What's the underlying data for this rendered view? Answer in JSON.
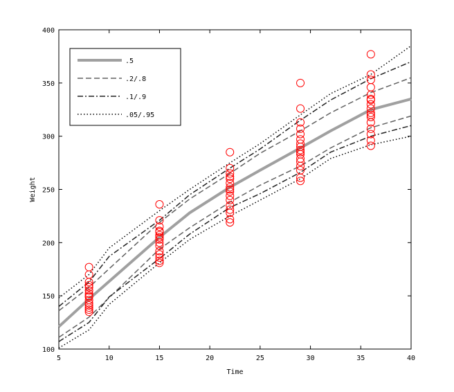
{
  "chart_data": {
    "type": "line",
    "title": "",
    "xlabel": "Time",
    "ylabel": "Weight",
    "xlim": [
      5,
      40
    ],
    "ylim": [
      100,
      400
    ],
    "xticks": [
      5,
      10,
      15,
      20,
      25,
      30,
      35,
      40
    ],
    "yticks": [
      100,
      150,
      200,
      250,
      300,
      350,
      400
    ],
    "grid": false,
    "legend_position": "top-left",
    "marker_color": "#ff0000",
    "series": [
      {
        "name": ".5",
        "style": "solid-thick-gray",
        "color": "#a0a0a0",
        "x": [
          5,
          8,
          15,
          18,
          22,
          25,
          29,
          32,
          36,
          40
        ],
        "y": [
          121,
          147,
          205,
          228,
          252,
          268,
          289,
          305,
          325,
          335
        ]
      },
      {
        "name": ".2/.8",
        "style": "dashed",
        "color": "#606060",
        "upper": {
          "x": [
            5,
            8,
            15,
            18,
            22,
            25,
            29,
            32,
            36,
            40
          ],
          "y": [
            136,
            158,
            219,
            241,
            265,
            284,
            305,
            322,
            341,
            355
          ]
        },
        "lower": {
          "x": [
            5,
            8,
            15,
            18,
            22,
            25,
            29,
            32,
            36,
            40
          ],
          "y": [
            111,
            130,
            194,
            214,
            238,
            254,
            272,
            289,
            308,
            319
          ]
        }
      },
      {
        "name": ".1/.9",
        "style": "dashdot",
        "color": "#202020",
        "upper": {
          "x": [
            5,
            8,
            10,
            15,
            18,
            22,
            25,
            29,
            32,
            36,
            40
          ],
          "y": [
            140,
            163,
            187,
            221,
            245,
            270,
            288,
            315,
            334,
            354,
            370
          ]
        },
        "lower": {
          "x": [
            5,
            8,
            10,
            15,
            18,
            22,
            25,
            29,
            32,
            36,
            40
          ],
          "y": [
            107,
            125,
            149,
            185,
            208,
            233,
            246,
            266,
            285,
            300,
            310
          ]
        }
      },
      {
        "name": ".05/.95",
        "style": "dotted",
        "color": "#000000",
        "upper": {
          "x": [
            5,
            8,
            10,
            15,
            18,
            22,
            25,
            29,
            32,
            36,
            40
          ],
          "y": [
            148,
            170,
            195,
            230,
            250,
            275,
            293,
            320,
            340,
            358,
            385
          ]
        },
        "lower": {
          "x": [
            5,
            8,
            10,
            15,
            18,
            22,
            25,
            29,
            32,
            36,
            40
          ],
          "y": [
            101,
            118,
            142,
            181,
            203,
            225,
            240,
            260,
            279,
            292,
            300
          ]
        }
      }
    ],
    "scatter": {
      "x": [
        8,
        8,
        8,
        8,
        8,
        8,
        8,
        8,
        8,
        8,
        8,
        8,
        8,
        8,
        8,
        15,
        15,
        15,
        15,
        15,
        15,
        15,
        15,
        15,
        15,
        15,
        15,
        15,
        15,
        15,
        22,
        22,
        22,
        22,
        22,
        22,
        22,
        22,
        22,
        22,
        22,
        22,
        22,
        22,
        22,
        22,
        29,
        29,
        29,
        29,
        29,
        29,
        29,
        29,
        29,
        29,
        29,
        29,
        29,
        29,
        29,
        29,
        29,
        36,
        36,
        36,
        36,
        36,
        36,
        36,
        36,
        36,
        36,
        36,
        36,
        36,
        36,
        36,
        36,
        36
      ],
      "y": [
        177,
        170,
        163,
        158,
        155,
        152,
        149,
        146,
        143,
        141,
        139,
        137,
        135,
        150,
        160,
        236,
        221,
        215,
        211,
        207,
        203,
        200,
        197,
        192,
        189,
        186,
        183,
        181,
        210,
        205,
        285,
        270,
        265,
        260,
        256,
        252,
        248,
        244,
        240,
        235,
        231,
        228,
        222,
        219,
        250,
        262,
        350,
        326,
        313,
        307,
        302,
        297,
        293,
        290,
        287,
        283,
        279,
        276,
        272,
        268,
        261,
        258,
        285,
        377,
        358,
        353,
        346,
        339,
        334,
        330,
        326,
        322,
        318,
        313,
        307,
        302,
        296,
        291,
        335,
        320
      ]
    }
  }
}
